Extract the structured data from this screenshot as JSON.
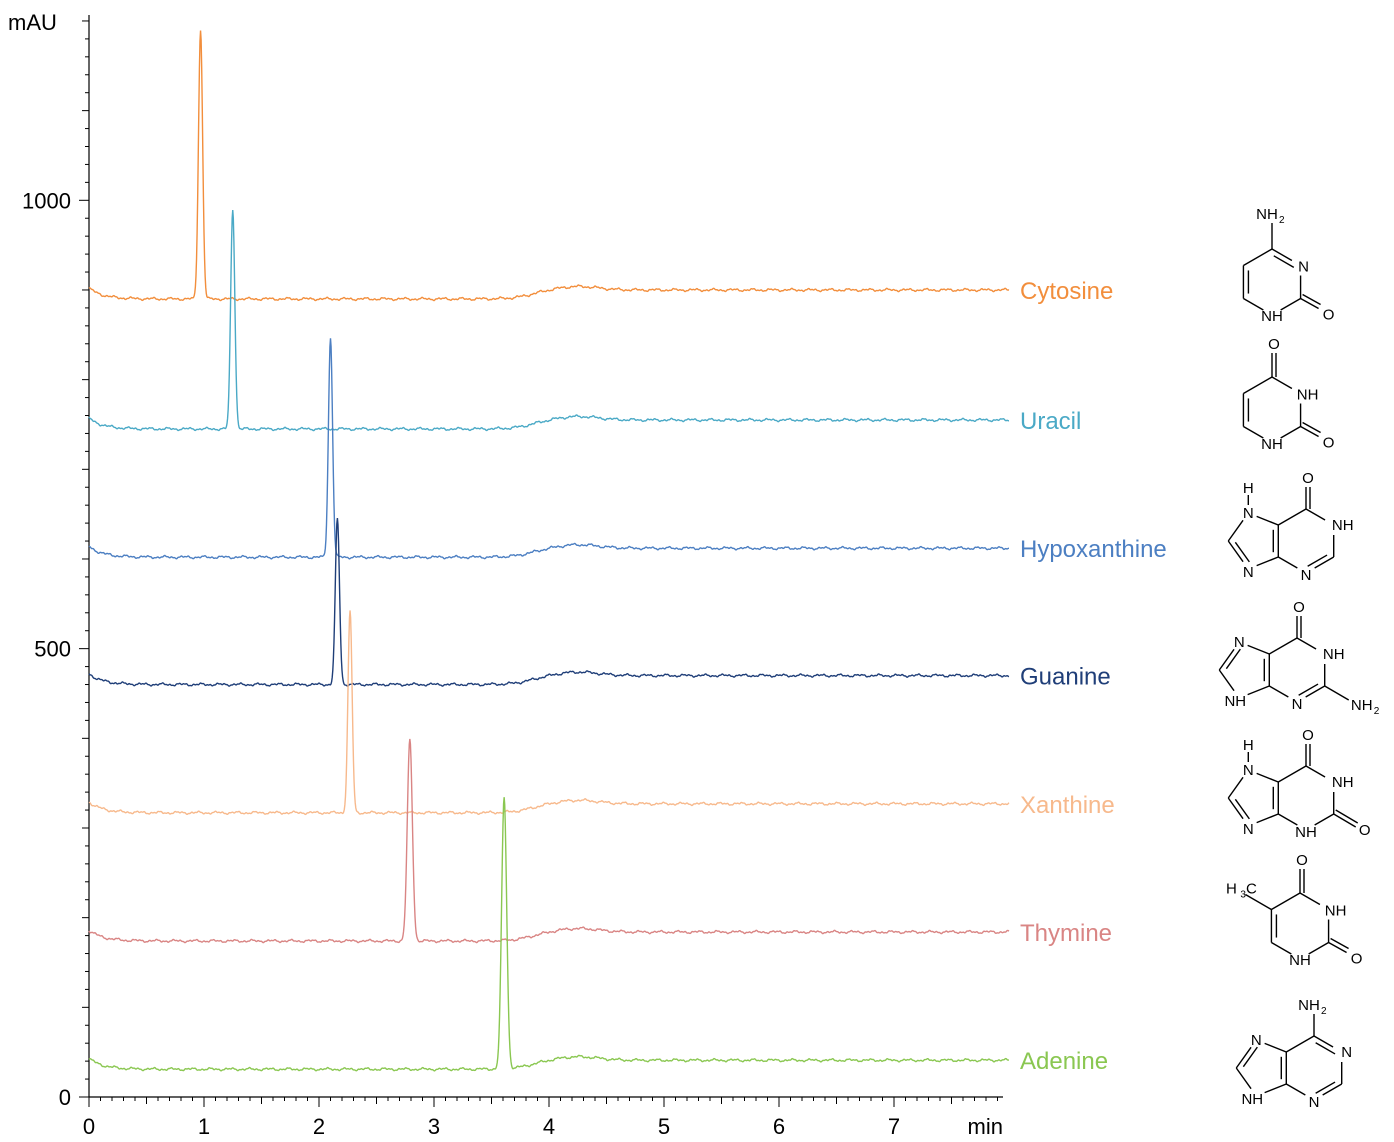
{
  "chart_data": {
    "type": "line",
    "title": "",
    "xlabel": "min",
    "ylabel": "mAU",
    "xlim": [
      0,
      8
    ],
    "ylim": [
      0,
      1200
    ],
    "x_ticks": [
      "0",
      "1",
      "2",
      "3",
      "4",
      "5",
      "6",
      "7"
    ],
    "y_ticks": [
      "0",
      "500",
      "1000"
    ],
    "grid": false,
    "series": [
      {
        "name": "Cytosine",
        "color": "#f28e3c",
        "baseline": 900,
        "peak_time": 0.97,
        "peak_height": 1200,
        "peak_width": 0.018,
        "structure": "cytosine"
      },
      {
        "name": "Uracil",
        "color": "#4aa9c6",
        "baseline": 755,
        "peak_time": 1.25,
        "peak_height": 1000,
        "peak_width": 0.018,
        "structure": "uracil"
      },
      {
        "name": "Hypoxanthine",
        "color": "#4c7fc2",
        "baseline": 612,
        "peak_time": 2.1,
        "peak_height": 856,
        "peak_width": 0.018,
        "structure": "hypoxanthine"
      },
      {
        "name": "Guanine",
        "color": "#1f3e78",
        "baseline": 470,
        "peak_time": 2.16,
        "peak_height": 655,
        "peak_width": 0.018,
        "structure": "guanine"
      },
      {
        "name": "Xanthine",
        "color": "#f7b98c",
        "baseline": 327,
        "peak_time": 2.27,
        "peak_height": 552,
        "peak_width": 0.018,
        "structure": "xanthine"
      },
      {
        "name": "Thymine",
        "color": "#d98584",
        "baseline": 184,
        "peak_time": 2.79,
        "peak_height": 408,
        "peak_width": 0.022,
        "structure": "thymine"
      },
      {
        "name": "Adenine",
        "color": "#8ac751",
        "baseline": 41,
        "peak_time": 3.61,
        "peak_height": 343,
        "peak_width": 0.022,
        "structure": "adenine"
      }
    ]
  },
  "structures": {
    "cytosine": {
      "amine": "NH",
      "amine_sub": "2",
      "n3": "N",
      "n1h": "NH",
      "o2": "O"
    },
    "uracil": {
      "o4": "O",
      "n3h": "NH",
      "n1h": "NH",
      "o2": "O"
    },
    "hypoxanthine": {
      "h9": "H",
      "n9": "N",
      "o6": "O",
      "n1h": "NH",
      "n7": "N",
      "n3": "N"
    },
    "guanine": {
      "o6": "O",
      "n1h": "NH",
      "n7": "N",
      "n9h": "NH",
      "n3": "N",
      "amine": "NH",
      "amine_sub": "2"
    },
    "xanthine": {
      "h7": "H",
      "n7": "N",
      "o6": "O",
      "n1h": "NH",
      "n9": "N",
      "n3h": "NH",
      "o2": "O"
    },
    "thymine": {
      "methyl": "H",
      "methyl_sub": "3",
      "methyl_c": "C",
      "o4": "O",
      "n3h": "NH",
      "n1h": "NH",
      "o2": "O"
    },
    "adenine": {
      "amine": "NH",
      "amine_sub": "2",
      "n7": "N",
      "n1": "N",
      "n9h": "NH",
      "n3": "N"
    }
  }
}
